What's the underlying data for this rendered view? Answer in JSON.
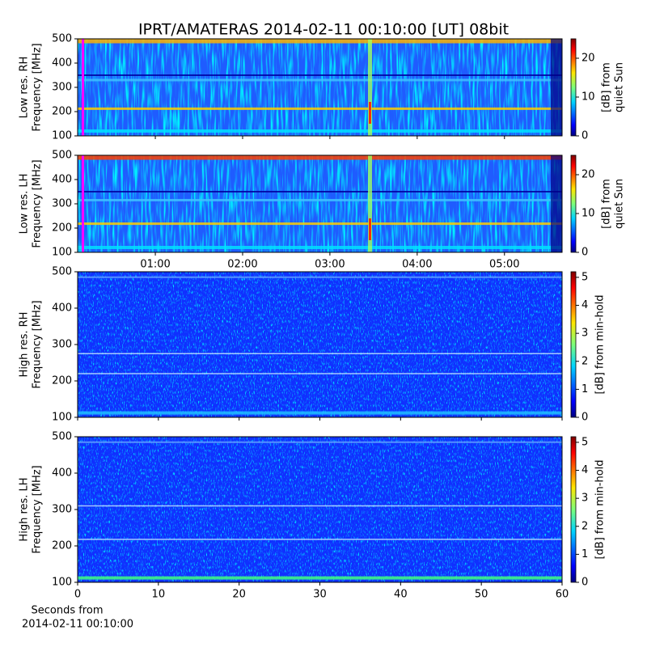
{
  "chart_data": [
    {
      "type": "heatmap",
      "title": "IPRT/AMATERAS 2014-02-11 00:10:00 [UT]   08bit",
      "ylabel": [
        "Low res. RH",
        "Frequency [MHz]"
      ],
      "ylim": [
        100,
        500
      ],
      "yticks": [
        100,
        200,
        300,
        400,
        500
      ],
      "colormap": "jet",
      "colorbar": {
        "label": [
          "[dB] from",
          "quiet Sun"
        ],
        "lim": [
          0,
          25
        ],
        "ticks": [
          0,
          10,
          20
        ]
      }
    },
    {
      "type": "heatmap",
      "ylabel": [
        "Low res. LH",
        "Frequency [MHz]"
      ],
      "ylim": [
        100,
        500
      ],
      "yticks": [
        100,
        200,
        300,
        400,
        500
      ],
      "xlim": [
        0.11,
        5.66
      ],
      "xticks": [
        {
          "value": 1,
          "label": "01:00"
        },
        {
          "value": 2,
          "label": "02:00"
        },
        {
          "value": 3,
          "label": "03:00"
        },
        {
          "value": 4,
          "label": "04:00"
        },
        {
          "value": 5,
          "label": "05:00"
        }
      ],
      "colormap": "jet",
      "colorbar": {
        "label": [
          "[dB] from",
          "quiet Sun"
        ],
        "lim": [
          0,
          25
        ],
        "ticks": [
          0,
          10,
          20
        ]
      }
    },
    {
      "type": "heatmap",
      "ylabel": [
        "High res. RH",
        "Frequency [MHz]"
      ],
      "ylim": [
        100,
        500
      ],
      "yticks": [
        100,
        200,
        300,
        400,
        500
      ],
      "colormap": "jet",
      "colorbar": {
        "label": [
          "[dB] from min-hold"
        ],
        "lim": [
          0,
          5.2
        ],
        "ticks": [
          0,
          1,
          2,
          3,
          4,
          5
        ]
      }
    },
    {
      "type": "heatmap",
      "ylabel": [
        "High res. LH",
        "Frequency [MHz]"
      ],
      "ylim": [
        100,
        500
      ],
      "yticks": [
        100,
        200,
        300,
        400,
        500
      ],
      "xlim": [
        0,
        60
      ],
      "xticks": [
        0,
        10,
        20,
        30,
        40,
        50,
        60
      ],
      "xlabel": [
        "Seconds from",
        "2014-02-11 00:10:00"
      ],
      "colormap": "jet",
      "colorbar": {
        "label": [
          "[dB] from min-hold"
        ],
        "lim": [
          0,
          5.2
        ],
        "ticks": [
          0,
          1,
          2,
          3,
          4,
          5
        ]
      }
    }
  ]
}
